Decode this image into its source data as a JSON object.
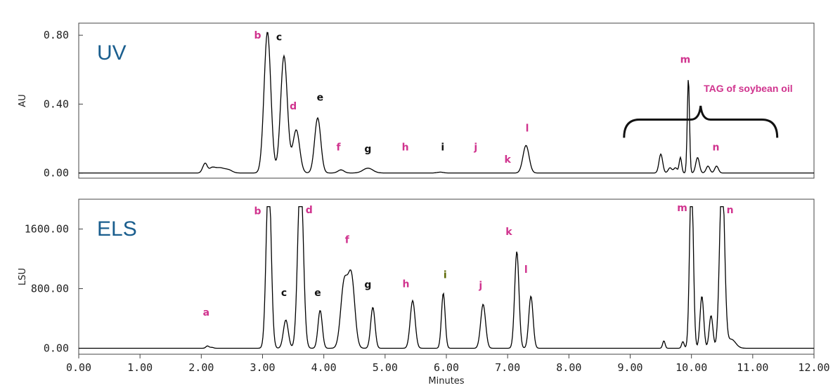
{
  "colors": {
    "trace": "#000000",
    "pink": "#d0338e",
    "black": "#111111",
    "olive": "#5a6600",
    "title": "#1a5e8e"
  },
  "chart_data": [
    {
      "type": "line",
      "title": "UV",
      "xlabel": "",
      "ylabel": "AU",
      "xlim": [
        0,
        12
      ],
      "ylim": [
        -0.03,
        0.87
      ],
      "yticks": [
        {
          "v": 0.0,
          "label": "0.00"
        },
        {
          "v": 0.4,
          "label": "0.40"
        },
        {
          "v": 0.8,
          "label": "0.80"
        }
      ],
      "peaks": [
        {
          "x": 2.03,
          "h": 0.02,
          "w": 0.03
        },
        {
          "x": 2.07,
          "h": 0.045,
          "w": 0.03
        },
        {
          "x": 2.17,
          "h": 0.025,
          "w": 0.05
        },
        {
          "x": 2.3,
          "h": 0.03,
          "w": 0.08
        },
        {
          "x": 2.45,
          "h": 0.015,
          "w": 0.06
        },
        {
          "x": 3.08,
          "h": 0.82,
          "w": 0.055
        },
        {
          "x": 3.35,
          "h": 0.68,
          "w": 0.055
        },
        {
          "x": 3.55,
          "h": 0.25,
          "w": 0.055
        },
        {
          "x": 3.9,
          "h": 0.32,
          "w": 0.05
        },
        {
          "x": 4.28,
          "h": 0.018,
          "w": 0.05
        },
        {
          "x": 4.72,
          "h": 0.028,
          "w": 0.08
        },
        {
          "x": 5.9,
          "h": 0.005,
          "w": 0.05
        },
        {
          "x": 7.3,
          "h": 0.16,
          "w": 0.05
        },
        {
          "x": 9.5,
          "h": 0.11,
          "w": 0.03
        },
        {
          "x": 9.65,
          "h": 0.03,
          "w": 0.03
        },
        {
          "x": 9.74,
          "h": 0.03,
          "w": 0.03
        },
        {
          "x": 9.82,
          "h": 0.09,
          "w": 0.02
        },
        {
          "x": 9.95,
          "h": 0.55,
          "w": 0.018
        },
        {
          "x": 10.1,
          "h": 0.09,
          "w": 0.03
        },
        {
          "x": 10.27,
          "h": 0.04,
          "w": 0.03
        },
        {
          "x": 10.41,
          "h": 0.04,
          "w": 0.03
        }
      ],
      "labels": [
        {
          "text": "b",
          "x": 2.92,
          "y": 0.78,
          "color": "pink"
        },
        {
          "text": "c",
          "x": 3.27,
          "y": 0.77,
          "color": "black"
        },
        {
          "text": "d",
          "x": 3.5,
          "y": 0.37,
          "color": "pink"
        },
        {
          "text": "e",
          "x": 3.94,
          "y": 0.42,
          "color": "black"
        },
        {
          "text": "f",
          "x": 4.24,
          "y": 0.13,
          "color": "pink"
        },
        {
          "text": "g",
          "x": 4.72,
          "y": 0.12,
          "color": "black"
        },
        {
          "text": "h",
          "x": 5.33,
          "y": 0.13,
          "color": "pink"
        },
        {
          "text": "i",
          "x": 5.94,
          "y": 0.13,
          "color": "black"
        },
        {
          "text": "j",
          "x": 6.48,
          "y": 0.13,
          "color": "pink"
        },
        {
          "text": "k",
          "x": 7.0,
          "y": 0.06,
          "color": "pink"
        },
        {
          "text": "l",
          "x": 7.32,
          "y": 0.24,
          "color": "pink"
        },
        {
          "text": "m",
          "x": 9.9,
          "y": 0.64,
          "color": "pink"
        },
        {
          "text": "n",
          "x": 10.4,
          "y": 0.13,
          "color": "pink"
        }
      ],
      "annotation": "TAG of soybean oil"
    },
    {
      "type": "line",
      "title": "ELS",
      "xlabel": "Minutes",
      "ylabel": "LSU",
      "xlim": [
        0,
        12
      ],
      "ylim": [
        -80,
        2000
      ],
      "yticks": [
        {
          "v": 0,
          "label": "0.00"
        },
        {
          "v": 800,
          "label": "800.00"
        },
        {
          "v": 1600,
          "label": "1600.00"
        }
      ],
      "xticks": [
        "0.00",
        "1.00",
        "2.00",
        "3.00",
        "4.00",
        "5.00",
        "6.00",
        "7.00",
        "8.00",
        "9.00",
        "10.00",
        "11.00",
        "12.00"
      ],
      "peaks": [
        {
          "x": 2.1,
          "h": 30,
          "w": 0.025
        },
        {
          "x": 2.17,
          "h": 12,
          "w": 0.03
        },
        {
          "x": 3.1,
          "h": 2400,
          "w": 0.04
        },
        {
          "x": 3.38,
          "h": 380,
          "w": 0.04
        },
        {
          "x": 3.62,
          "h": 2400,
          "w": 0.045
        },
        {
          "x": 3.94,
          "h": 510,
          "w": 0.035
        },
        {
          "x": 4.33,
          "h": 850,
          "w": 0.055
        },
        {
          "x": 4.45,
          "h": 950,
          "w": 0.055
        },
        {
          "x": 4.8,
          "h": 550,
          "w": 0.035
        },
        {
          "x": 5.45,
          "h": 640,
          "w": 0.04
        },
        {
          "x": 5.95,
          "h": 740,
          "w": 0.03
        },
        {
          "x": 6.6,
          "h": 590,
          "w": 0.04
        },
        {
          "x": 7.15,
          "h": 1300,
          "w": 0.035
        },
        {
          "x": 7.38,
          "h": 700,
          "w": 0.035
        },
        {
          "x": 9.55,
          "h": 100,
          "w": 0.02
        },
        {
          "x": 9.86,
          "h": 90,
          "w": 0.02
        },
        {
          "x": 10.0,
          "h": 2400,
          "w": 0.03
        },
        {
          "x": 10.17,
          "h": 700,
          "w": 0.03
        },
        {
          "x": 10.32,
          "h": 440,
          "w": 0.03
        },
        {
          "x": 10.5,
          "h": 2400,
          "w": 0.04
        },
        {
          "x": 10.65,
          "h": 120,
          "w": 0.07
        }
      ],
      "clip": 1900,
      "labels": [
        {
          "text": "a",
          "x": 2.08,
          "y": 440,
          "color": "pink"
        },
        {
          "text": "b",
          "x": 2.92,
          "y": 1800,
          "color": "pink"
        },
        {
          "text": "c",
          "x": 3.35,
          "y": 700,
          "color": "black"
        },
        {
          "text": "d",
          "x": 3.76,
          "y": 1810,
          "color": "pink"
        },
        {
          "text": "e",
          "x": 3.9,
          "y": 700,
          "color": "black"
        },
        {
          "text": "f",
          "x": 4.38,
          "y": 1410,
          "color": "pink"
        },
        {
          "text": "g",
          "x": 4.72,
          "y": 810,
          "color": "black"
        },
        {
          "text": "h",
          "x": 5.34,
          "y": 820,
          "color": "pink"
        },
        {
          "text": "i",
          "x": 5.98,
          "y": 940,
          "color": "olive"
        },
        {
          "text": "j",
          "x": 6.56,
          "y": 800,
          "color": "pink"
        },
        {
          "text": "k",
          "x": 7.02,
          "y": 1520,
          "color": "pink"
        },
        {
          "text": "l",
          "x": 7.3,
          "y": 1010,
          "color": "pink"
        },
        {
          "text": "m",
          "x": 9.85,
          "y": 1840,
          "color": "pink"
        },
        {
          "text": "n",
          "x": 10.63,
          "y": 1810,
          "color": "pink"
        }
      ]
    }
  ]
}
